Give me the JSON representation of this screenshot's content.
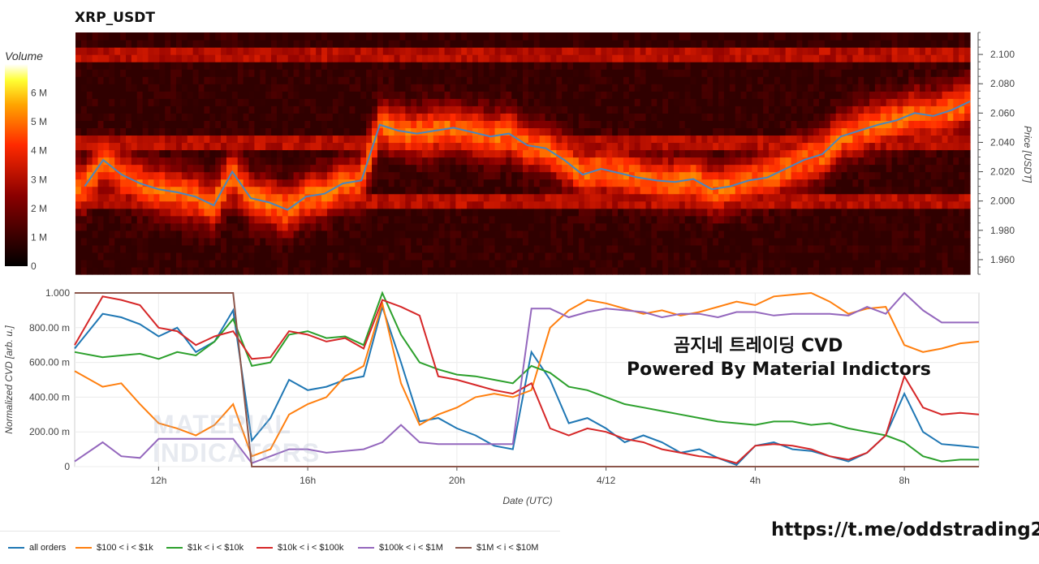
{
  "chart_data": [
    {
      "type": "heatmap",
      "title": "XRP_USDT",
      "colorbar_title": "Volume",
      "colorbar_ticks": [
        "0",
        "1 M",
        "2 M",
        "3 M",
        "4 M",
        "5 M",
        "6 M"
      ],
      "colorbar_range": [
        0,
        7000000
      ],
      "ylabel": "Price [USDT]",
      "ylim": [
        1.95,
        2.115
      ],
      "yticks": [
        "1.960",
        "1.980",
        "2.000",
        "2.020",
        "2.040",
        "2.060",
        "2.080",
        "2.100"
      ],
      "bands": [
        2.1,
        2.04,
        2.0
      ],
      "price_series": {
        "name": "price",
        "color": "#4a86c0",
        "x_hours": [
          10.0,
          10.5,
          11.0,
          11.5,
          12.0,
          12.5,
          13.0,
          13.5,
          14.0,
          14.5,
          15.0,
          15.5,
          16.0,
          16.5,
          17.0,
          17.5,
          18.0,
          18.5,
          19.0,
          19.5,
          20.0,
          20.5,
          21.0,
          21.5,
          22.0,
          22.5,
          23.0,
          23.5,
          24.0,
          24.5,
          25.0,
          25.5,
          26.0,
          26.5,
          27.0,
          27.5,
          28.0,
          28.5,
          29.0,
          29.5,
          30.0,
          30.5,
          31.0,
          31.5,
          32.0,
          32.5,
          33.0,
          33.5,
          34.0
        ],
        "y": [
          2.01,
          2.028,
          2.018,
          2.012,
          2.008,
          2.006,
          2.003,
          1.997,
          2.02,
          2.002,
          1.999,
          1.994,
          2.003,
          2.005,
          2.012,
          2.014,
          2.052,
          2.048,
          2.046,
          2.048,
          2.05,
          2.047,
          2.044,
          2.046,
          2.038,
          2.036,
          2.028,
          2.018,
          2.022,
          2.019,
          2.016,
          2.014,
          2.013,
          2.015,
          2.008,
          2.01,
          2.014,
          2.016,
          2.022,
          2.028,
          2.032,
          2.044,
          2.048,
          2.052,
          2.055,
          2.06,
          2.058,
          2.062,
          2.068
        ]
      }
    },
    {
      "type": "line",
      "xlabel": "Date (UTC)",
      "ylabel": "Normalized CVD [arb. u.]",
      "xlim_hours": [
        9.75,
        34.0
      ],
      "ylim": [
        0,
        1
      ],
      "yticks": [
        "0",
        "200.00 m",
        "400.00 m",
        "600.00 m",
        "800.00 m",
        "1.000"
      ],
      "xticks": [
        {
          "hour": 12,
          "label": "12h"
        },
        {
          "hour": 16,
          "label": "16h"
        },
        {
          "hour": 20,
          "label": "20h"
        },
        {
          "hour": 24,
          "label": "4/12"
        },
        {
          "hour": 28,
          "label": "4h"
        },
        {
          "hour": 32,
          "label": "8h"
        }
      ],
      "x": [
        9.75,
        10.5,
        11.0,
        11.5,
        12.0,
        12.5,
        13.0,
        13.5,
        14.0,
        14.5,
        15.0,
        15.5,
        16.0,
        16.5,
        17.0,
        17.5,
        18.0,
        18.5,
        19.0,
        19.5,
        20.0,
        20.5,
        21.0,
        21.5,
        22.0,
        22.5,
        23.0,
        23.5,
        24.0,
        24.5,
        25.0,
        25.5,
        26.0,
        26.5,
        27.0,
        27.5,
        28.0,
        28.5,
        29.0,
        29.5,
        30.0,
        30.5,
        31.0,
        31.5,
        32.0,
        32.5,
        33.0,
        33.5,
        34.0
      ],
      "series": [
        {
          "name": "all orders",
          "color": "#1f77b4",
          "values": [
            0.68,
            0.88,
            0.86,
            0.82,
            0.75,
            0.8,
            0.66,
            0.72,
            0.9,
            0.15,
            0.28,
            0.5,
            0.44,
            0.46,
            0.5,
            0.52,
            0.92,
            0.6,
            0.26,
            0.28,
            0.22,
            0.18,
            0.12,
            0.1,
            0.66,
            0.5,
            0.25,
            0.28,
            0.22,
            0.14,
            0.18,
            0.14,
            0.08,
            0.1,
            0.05,
            0.01,
            0.12,
            0.14,
            0.1,
            0.09,
            0.06,
            0.03,
            0.08,
            0.18,
            0.42,
            0.2,
            0.13,
            0.12,
            0.11
          ]
        },
        {
          "name": "$100 < i < $1k",
          "color": "#ff7f0e",
          "values": [
            0.55,
            0.46,
            0.48,
            0.36,
            0.25,
            0.22,
            0.18,
            0.24,
            0.36,
            0.06,
            0.1,
            0.3,
            0.36,
            0.4,
            0.52,
            0.58,
            0.94,
            0.48,
            0.24,
            0.3,
            0.34,
            0.4,
            0.42,
            0.4,
            0.44,
            0.8,
            0.9,
            0.96,
            0.94,
            0.91,
            0.88,
            0.9,
            0.87,
            0.89,
            0.92,
            0.95,
            0.93,
            0.98,
            0.99,
            1.0,
            0.95,
            0.88,
            0.91,
            0.92,
            0.7,
            0.66,
            0.68,
            0.71,
            0.72
          ]
        },
        {
          "name": "$1k < i < $10k",
          "color": "#2ca02c",
          "values": [
            0.66,
            0.63,
            0.64,
            0.65,
            0.62,
            0.66,
            0.64,
            0.72,
            0.85,
            0.58,
            0.6,
            0.76,
            0.78,
            0.74,
            0.75,
            0.7,
            1.0,
            0.76,
            0.6,
            0.56,
            0.53,
            0.52,
            0.5,
            0.48,
            0.58,
            0.54,
            0.46,
            0.44,
            0.4,
            0.36,
            0.34,
            0.32,
            0.3,
            0.28,
            0.26,
            0.25,
            0.24,
            0.26,
            0.26,
            0.24,
            0.25,
            0.22,
            0.2,
            0.18,
            0.14,
            0.06,
            0.03,
            0.04,
            0.04
          ]
        },
        {
          "name": "$10k < i < $100k",
          "color": "#d62728",
          "values": [
            0.7,
            0.98,
            0.96,
            0.93,
            0.8,
            0.78,
            0.7,
            0.75,
            0.78,
            0.62,
            0.63,
            0.78,
            0.76,
            0.72,
            0.74,
            0.68,
            0.96,
            0.92,
            0.87,
            0.52,
            0.5,
            0.47,
            0.44,
            0.42,
            0.48,
            0.22,
            0.18,
            0.22,
            0.2,
            0.16,
            0.14,
            0.1,
            0.08,
            0.06,
            0.05,
            0.02,
            0.12,
            0.13,
            0.12,
            0.1,
            0.06,
            0.04,
            0.08,
            0.18,
            0.52,
            0.34,
            0.3,
            0.31,
            0.3
          ]
        },
        {
          "name": "$100k < i < $1M",
          "color": "#9467bd",
          "values": [
            0.03,
            0.14,
            0.06,
            0.05,
            0.16,
            0.16,
            0.16,
            0.16,
            0.16,
            0.02,
            0.06,
            0.1,
            0.1,
            0.08,
            0.09,
            0.1,
            0.14,
            0.24,
            0.14,
            0.13,
            0.13,
            0.13,
            0.13,
            0.13,
            0.91,
            0.91,
            0.86,
            0.89,
            0.91,
            0.9,
            0.89,
            0.86,
            0.88,
            0.88,
            0.86,
            0.89,
            0.89,
            0.87,
            0.88,
            0.88,
            0.88,
            0.87,
            0.92,
            0.88,
            1.0,
            0.9,
            0.83,
            0.83,
            0.83
          ]
        },
        {
          "name": "$1M < i < $10M",
          "color": "#8c564b",
          "values": [
            1.0,
            1.0,
            1.0,
            1.0,
            1.0,
            1.0,
            1.0,
            1.0,
            1.0,
            0.0,
            0.0,
            0.0,
            0.0,
            0.0,
            0.0,
            0.0,
            0.0,
            0.0,
            0.0,
            0.0,
            0.0,
            0.0,
            0.0,
            0.0,
            0.0,
            0.0,
            0.0,
            0.0,
            0.0,
            0.0,
            0.0,
            0.0,
            0.0,
            0.0,
            0.0,
            0.0,
            0.0,
            0.0,
            0.0,
            0.0,
            0.0,
            0.0,
            0.0,
            0.0,
            0.0,
            0.0,
            0.0,
            0.0,
            0.0
          ]
        }
      ],
      "annotations": [
        "곰지네 트레이딩 CVD",
        "Powered By Material Indictors"
      ],
      "watermark": [
        "MATERIAL",
        "INDICATORS"
      ],
      "legend_position": "bottom"
    }
  ],
  "footer_url": "https://t.me/oddstrading2"
}
